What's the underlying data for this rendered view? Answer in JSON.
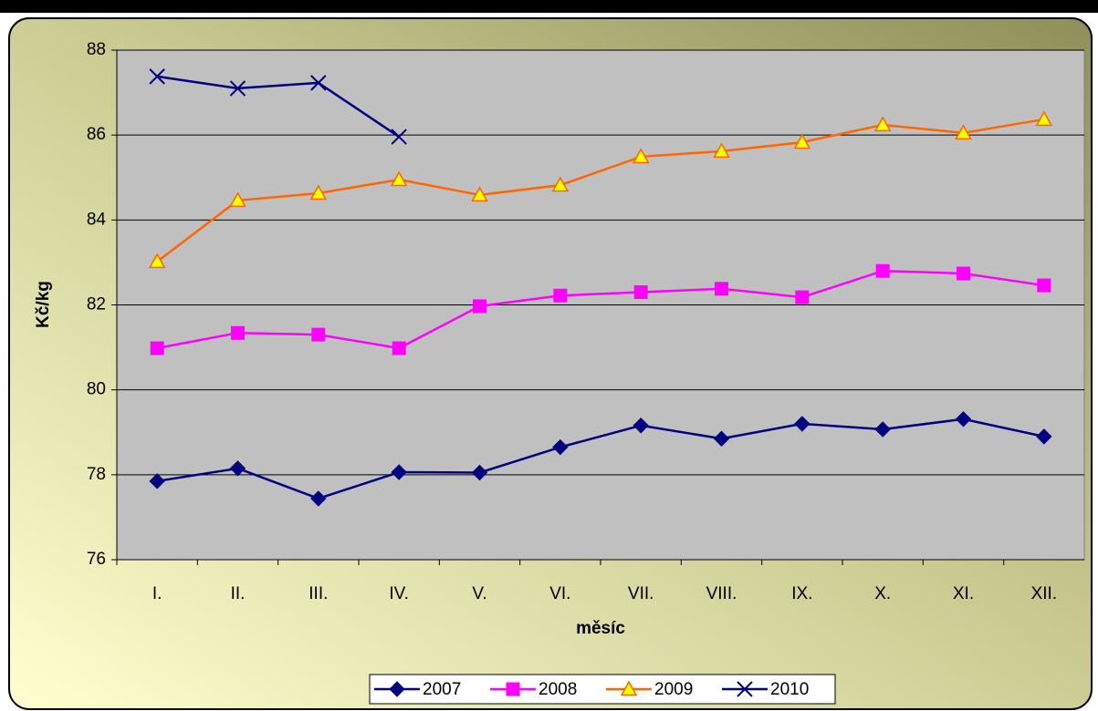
{
  "chart_data": {
    "type": "line",
    "ylabel": "Kč/kg",
    "xlabel": "měsíc",
    "categories": [
      "I.",
      "II.",
      "III.",
      "IV.",
      "V.",
      "VI.",
      "VII.",
      "VIII.",
      "IX.",
      "X.",
      "XI.",
      "XII."
    ],
    "series": [
      {
        "name": "2007",
        "color": "#000080",
        "marker": "diamond",
        "marker_fill": "#000080",
        "values": [
          77.85,
          78.15,
          77.44,
          78.06,
          78.05,
          78.65,
          79.16,
          78.85,
          79.2,
          79.07,
          79.31,
          78.9
        ]
      },
      {
        "name": "2008",
        "color": "#ff00ff",
        "marker": "square",
        "marker_fill": "#ff00ff",
        "values": [
          80.98,
          81.34,
          81.3,
          80.98,
          81.97,
          82.22,
          82.3,
          82.38,
          82.18,
          82.8,
          82.74,
          82.46
        ]
      },
      {
        "name": "2009",
        "color": "#ff6600",
        "marker": "triangle",
        "marker_fill": "#ffff00",
        "values": [
          83.02,
          84.46,
          84.63,
          84.95,
          84.59,
          84.82,
          85.49,
          85.62,
          85.83,
          86.24,
          86.05,
          86.37
        ]
      },
      {
        "name": "2010",
        "color": "#000080",
        "marker": "x",
        "marker_fill": "#000080",
        "values": [
          87.38,
          87.1,
          87.23,
          85.96,
          null,
          null,
          null,
          null,
          null,
          null,
          null,
          null
        ]
      }
    ],
    "ylim": [
      76,
      88
    ],
    "yticks": [
      76,
      78,
      80,
      82,
      84,
      86,
      88
    ],
    "grid": true,
    "legend": "bottom"
  }
}
